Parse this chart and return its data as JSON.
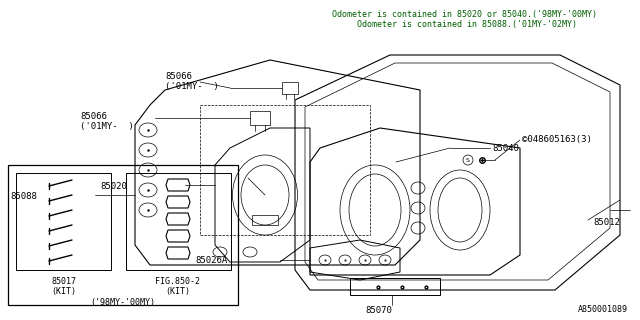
{
  "bg_color": "#ffffff",
  "line_color": "#000000",
  "annotation_color": "#006000",
  "fig_width": 6.4,
  "fig_height": 3.2,
  "dpi": 100,
  "diagram_id": "A850001089",
  "annotation_text": "Odometer is contained in 85020 or 85040.('98MY-'00MY)\n     Odometer is contained in 85088.('01MY-'02MY)",
  "label_85066_top": "85066\n('01MY-  )",
  "label_85066_bot": "85066\n('01MY-  )",
  "label_85088": "85088",
  "label_85040": "85040",
  "label_85020": "85020",
  "label_85026A": "85026A",
  "label_85070": "85070",
  "label_85012": "85012",
  "label_screw": "©048605163(3)",
  "label_85017": "85017\n(KIT)",
  "label_fig850": "FIG.850-2\n(KIT)",
  "label_98my": "('98MY-'00MY)"
}
